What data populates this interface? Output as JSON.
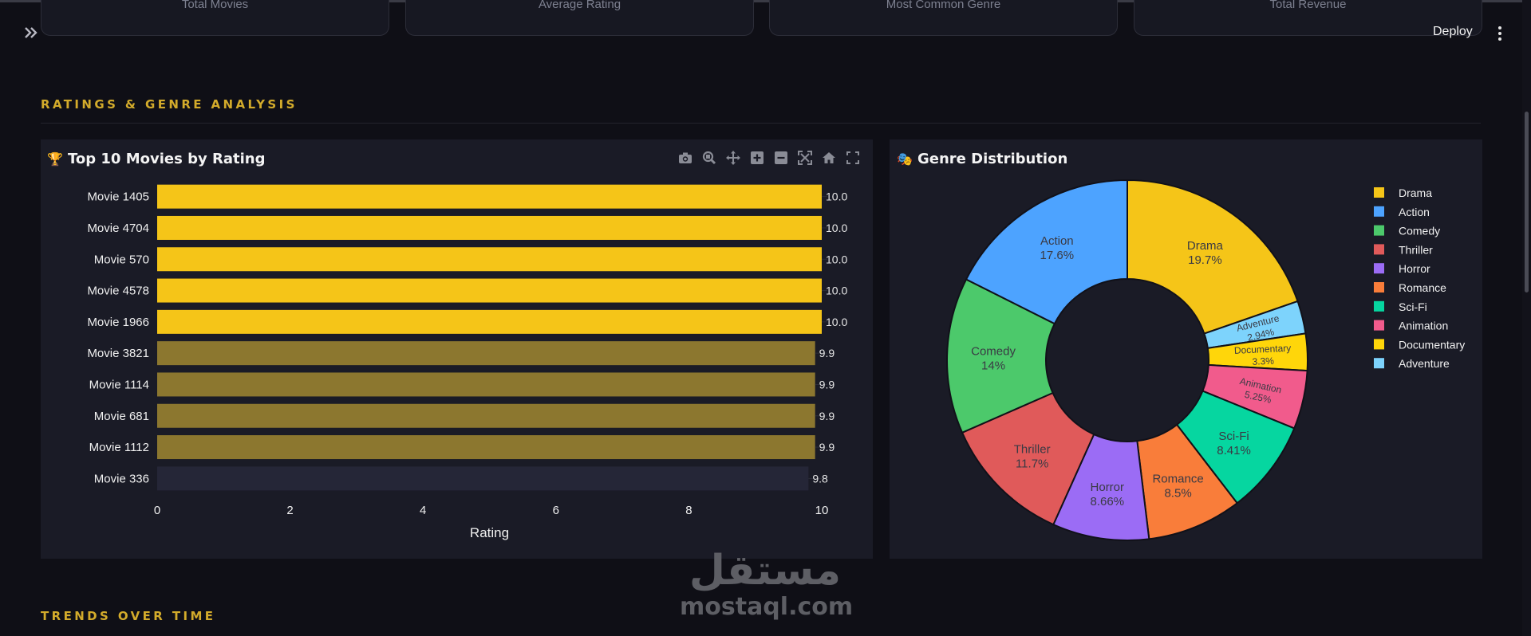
{
  "header": {
    "deploy_label": "Deploy",
    "metrics": [
      {
        "label": "Total Movies"
      },
      {
        "label": "Average Rating"
      },
      {
        "label": "Most Common Genre"
      },
      {
        "label": "Total Revenue"
      }
    ]
  },
  "sections": {
    "ratings_title": "RATINGS & GENRE ANALYSIS",
    "trends_title": "TRENDS OVER TIME"
  },
  "panels": {
    "top10": {
      "emoji": "🏆",
      "title": "Top 10 Movies by Rating"
    },
    "genre": {
      "emoji": "🎭",
      "title": "Genre Distribution"
    }
  },
  "icons": {
    "modebar": [
      "camera-icon",
      "zoom-icon",
      "pan-icon",
      "zoom-in-icon",
      "zoom-out-icon",
      "autoscale-icon",
      "home-icon",
      "fullscreen-icon"
    ]
  },
  "watermark": {
    "arabic": "مستقل",
    "latin": "mostaql.com"
  },
  "colors": {
    "accent": "#d3ab2b",
    "bar_10": "#f5c518",
    "bar_99": "#8c772f",
    "bar_98": "#252637"
  },
  "chart_data": [
    {
      "type": "bar",
      "orientation": "horizontal",
      "categories": [
        "Movie 1405",
        "Movie 4704",
        "Movie 570",
        "Movie 4578",
        "Movie 1966",
        "Movie 3821",
        "Movie 1114",
        "Movie 681",
        "Movie 1112",
        "Movie 336"
      ],
      "values": [
        10.0,
        10.0,
        10.0,
        10.0,
        10.0,
        9.9,
        9.9,
        9.9,
        9.9,
        9.8
      ],
      "value_labels": [
        "10.0",
        "10.0",
        "10.0",
        "10.0",
        "10.0",
        "9.9",
        "9.9",
        "9.9",
        "9.9",
        "9.8"
      ],
      "xlabel": "Rating",
      "xlim": [
        0,
        10
      ],
      "xticks": [
        "0",
        "2",
        "4",
        "6",
        "8",
        "10"
      ],
      "grid": false
    },
    {
      "type": "pie",
      "hole": true,
      "slices": [
        {
          "label": "Drama",
          "pct_label": "19.7%",
          "value": 19.7,
          "color": "#f5c518"
        },
        {
          "label": "Adventure",
          "pct_label": "2.94%",
          "value": 2.94,
          "color": "#7dd3fc"
        },
        {
          "label": "Documentary",
          "pct_label": "3.3%",
          "value": 3.3,
          "color": "#ffd60a"
        },
        {
          "label": "Animation",
          "pct_label": "5.25%",
          "value": 5.25,
          "color": "#f15b8c"
        },
        {
          "label": "Sci-Fi",
          "pct_label": "8.41%",
          "value": 8.41,
          "color": "#06d6a0"
        },
        {
          "label": "Romance",
          "pct_label": "8.5%",
          "value": 8.5,
          "color": "#f97d3a"
        },
        {
          "label": "Horror",
          "pct_label": "8.66%",
          "value": 8.66,
          "color": "#9b6cf5"
        },
        {
          "label": "Thriller",
          "pct_label": "11.7%",
          "value": 11.7,
          "color": "#e05a5a"
        },
        {
          "label": "Comedy",
          "pct_label": "14%",
          "value": 14,
          "color": "#4cc96b"
        },
        {
          "label": "Action",
          "pct_label": "17.6%",
          "value": 17.6,
          "color": "#4da3ff"
        }
      ],
      "legend": [
        "Drama",
        "Action",
        "Comedy",
        "Thriller",
        "Horror",
        "Romance",
        "Sci-Fi",
        "Animation",
        "Documentary",
        "Adventure"
      ],
      "legend_position": "right"
    }
  ]
}
